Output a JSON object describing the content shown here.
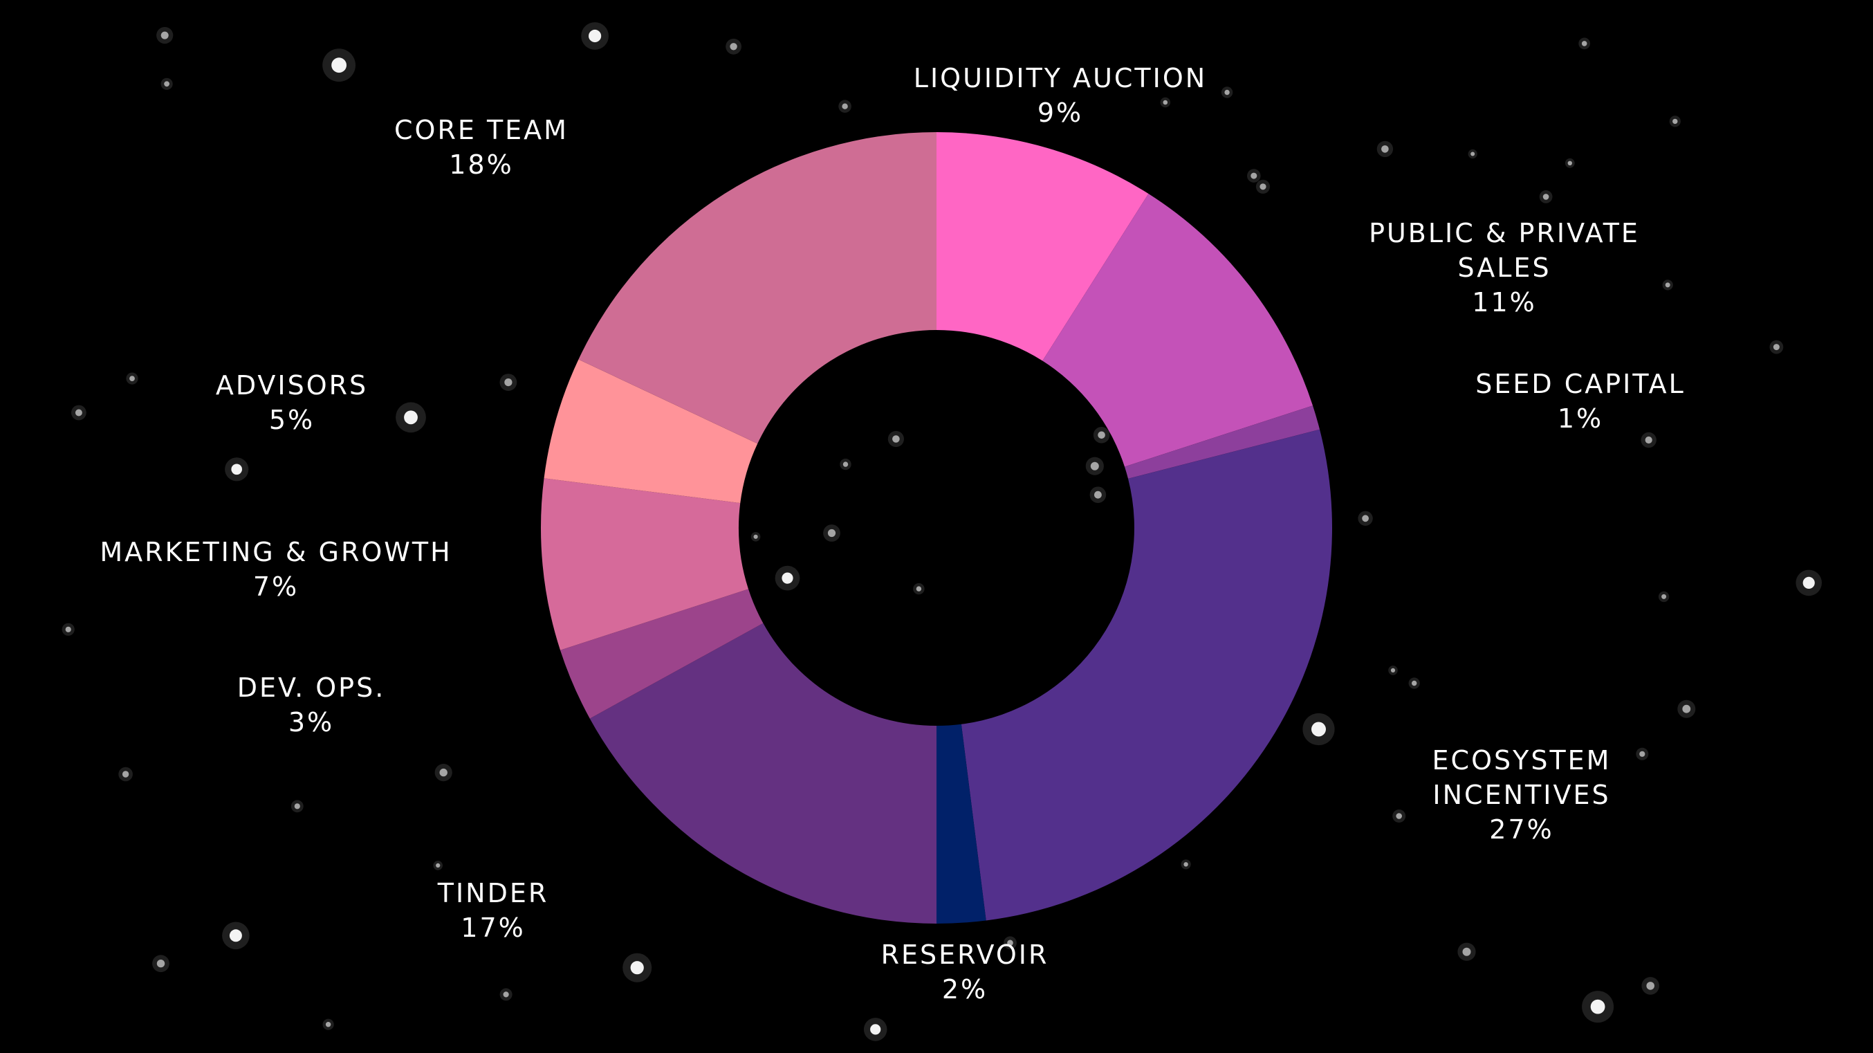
{
  "chart_data": {
    "type": "pie",
    "variant": "donut",
    "background": "#000000",
    "slices": [
      {
        "label": "LIQUIDITY AUCTION",
        "value": 9,
        "value_label": "9%",
        "color": "#ff66c4"
      },
      {
        "label": "PUBLIC & PRIVATE SALES",
        "value": 11,
        "value_label": "11%",
        "color": "#c452b8"
      },
      {
        "label": "SEED CAPITAL",
        "value": 1,
        "value_label": "1%",
        "color": "#8d3f9c"
      },
      {
        "label": "ECOSYSTEM INCENTIVES",
        "value": 27,
        "value_label": "27%",
        "color": "#53308c"
      },
      {
        "label": "RESERVOIR",
        "value": 2,
        "value_label": "2%",
        "color": "#012169"
      },
      {
        "label": "TINDER",
        "value": 17,
        "value_label": "17%",
        "color": "#643181"
      },
      {
        "label": "DEV. OPS.",
        "value": 3,
        "value_label": "3%",
        "color": "#9c448b"
      },
      {
        "label": "MARKETING & GROWTH",
        "value": 7,
        "value_label": "7%",
        "color": "#d66a9a"
      },
      {
        "label": "ADVISORS",
        "value": 5,
        "value_label": "5%",
        "color": "#ff9399"
      },
      {
        "label": "CORE TEAM",
        "value": 18,
        "value_label": "18%",
        "color": "#cf6d94"
      }
    ]
  }
}
